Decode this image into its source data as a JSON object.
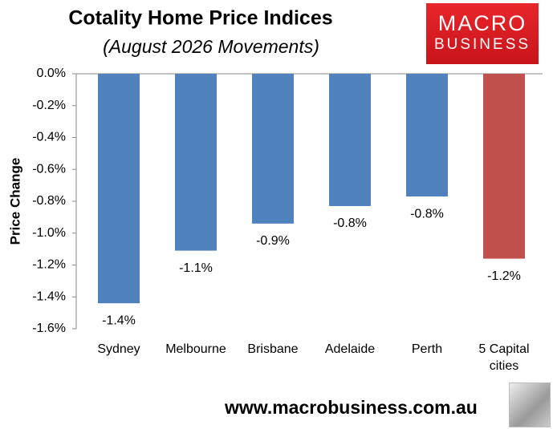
{
  "chart_data": {
    "type": "bar",
    "title": "Cotality Home Price Indices",
    "subtitle": "(August 2026 Movements)",
    "y_label": "Price Change",
    "categories": [
      "Sydney",
      "Melbourne",
      "Brisbane",
      "Adelaide",
      "Perth",
      "5 Capital cities"
    ],
    "values": [
      -1.44,
      -1.11,
      -0.94,
      -0.83,
      -0.77,
      -1.16
    ],
    "value_labels": [
      "-1.4%",
      "-1.1%",
      "-0.9%",
      "-0.8%",
      "-0.8%",
      "-1.2%"
    ],
    "colors": [
      "#4f81bd",
      "#4f81bd",
      "#4f81bd",
      "#4f81bd",
      "#4f81bd",
      "#c0504d"
    ],
    "ylim": [
      -1.6,
      0
    ],
    "yticks": [
      {
        "value": 0,
        "label": "0.0%"
      },
      {
        "value": -0.2,
        "label": "-0.2%"
      },
      {
        "value": -0.4,
        "label": "-0.4%"
      },
      {
        "value": -0.6,
        "label": "-0.6%"
      },
      {
        "value": -0.8,
        "label": "-0.8%"
      },
      {
        "value": -1.0,
        "label": "-1.0%"
      },
      {
        "value": -1.2,
        "label": "-1.2%"
      },
      {
        "value": -1.4,
        "label": "-1.4%"
      },
      {
        "value": -1.6,
        "label": "-1.6%"
      }
    ],
    "grid": false
  },
  "logo": {
    "line1": "MACRO",
    "line2": "BUSINESS"
  },
  "website": "www.macrobusiness.com.au"
}
